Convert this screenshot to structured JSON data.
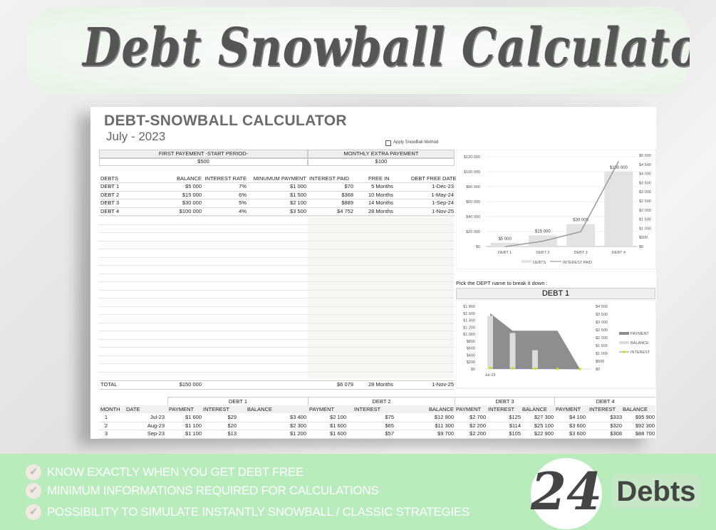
{
  "banner": {
    "title": "Debt Snowball Calculator"
  },
  "sheet": {
    "title": "DEBT-SNOWBALL CALCULATOR",
    "period": "July - 2023",
    "snowball_checkbox_label": "Apply SnowBall Method",
    "snowball_checked": false
  },
  "settings": {
    "first_payment_label": "FIRST PAYEMENT -START PERIOD-",
    "first_payment_value": "$500",
    "extra_payment_label": "MONTHLY EXTRA PAYEMENT",
    "extra_payment_value": "$100"
  },
  "debts": {
    "headers": [
      "DEBTS",
      "BALANCE",
      "INTEREST RATE",
      "MINUMUM PAYMENT",
      "INTEREST PAID",
      "FREE IN",
      "DEBT FREE DATE"
    ],
    "rows": [
      [
        "DEBT 1",
        "$5 000",
        "7%",
        "$1 000",
        "$70",
        "5 Months",
        "1-Dec-23"
      ],
      [
        "DEBT 2",
        "$15 000",
        "6%",
        "$1 500",
        "$368",
        "10 Months",
        "1-May-24"
      ],
      [
        "DEBT 3",
        "$30 000",
        "5%",
        "$2 100",
        "$889",
        "14 Months",
        "1-Sep-24"
      ],
      [
        "DEBT 4",
        "$100 000",
        "4%",
        "$3 500",
        "$4 752",
        "28 Months",
        "1-Nov-25"
      ]
    ],
    "total": [
      "TOTAL",
      "$150 000",
      "$6 079",
      "28 Months",
      "1-Nov-25"
    ]
  },
  "schedule": {
    "groups": [
      "DEBT 1",
      "DEBT 2",
      "DEBT 3",
      "DEBT 4"
    ],
    "headers": [
      "MONTH",
      "DATE",
      "PAYMENT",
      "INTEREST",
      "BALANCE",
      "PAYMENT",
      "INTEREST",
      "BALANCE",
      "PAYMENT",
      "INTEREST",
      "BALANCE",
      "PAYMENT",
      "INTEREST",
      "BALANCE"
    ],
    "rows": [
      [
        "1",
        "Jul-23",
        "$1 600",
        "$29",
        "$3 400",
        "$2 100",
        "$75",
        "$12 900",
        "$2 700",
        "$125",
        "$27 300",
        "$4 100",
        "$333",
        "$95 900"
      ],
      [
        "2",
        "Aug-23",
        "$1 100",
        "$20",
        "$2 300",
        "$1 600",
        "$65",
        "$11 300",
        "$2 200",
        "$114",
        "$25 100",
        "$3 600",
        "$320",
        "$92 300"
      ],
      [
        "3",
        "Sep-23",
        "$1 100",
        "$13",
        "$1 200",
        "$1 600",
        "$57",
        "$9 700",
        "$2 200",
        "$105",
        "$22 900",
        "$3 600",
        "$308",
        "$88 700"
      ]
    ]
  },
  "breakdown": {
    "prompt": "Pick the DEPT name to break it down :",
    "selected": "DEBT 1"
  },
  "chart_data": [
    {
      "type": "bar",
      "categories": [
        "DEBT 1",
        "DEBT 2",
        "DEBT 3",
        "DEBT 4"
      ],
      "series": [
        {
          "name": "DEBTS",
          "type": "bar",
          "axis": "left",
          "values": [
            5000,
            15000,
            30000,
            100000
          ],
          "labels": [
            "$5 000",
            "$15 000",
            "$30 000",
            "$100 000"
          ],
          "color": "#e3e3e3"
        },
        {
          "name": "INTEREST PAID",
          "type": "line",
          "axis": "right",
          "values": [
            70,
            368,
            889,
            4752
          ],
          "color": "#9a9a9a"
        }
      ],
      "ylim": [
        0,
        120000
      ],
      "yticks": [
        "$0",
        "$20 000",
        "$40 000",
        "$60 000",
        "$80 000",
        "$100 000",
        "$120 000"
      ],
      "y2lim": [
        0,
        5000
      ],
      "y2ticks": [
        "$0",
        "$500",
        "$1 000",
        "$1 500",
        "$2 000",
        "$2 500",
        "$3 000",
        "$3 500",
        "$4 000",
        "$4 500",
        "$5 000"
      ],
      "grid": true,
      "legend": "bottom"
    },
    {
      "type": "area",
      "x_labels": [
        "Jul-23",
        "",
        "",
        "",
        ""
      ],
      "series": [
        {
          "name": "PAYMENT",
          "type": "area",
          "axis": "left",
          "values": [
            1600,
            1100,
            1100,
            1100,
            0
          ],
          "color": "#8e8e8e"
        },
        {
          "name": "BALANCE",
          "type": "bar",
          "axis": "right",
          "values": [
            3400,
            2300,
            1200,
            0,
            0
          ],
          "color": "#dcdcdc"
        },
        {
          "name": "INTEREST",
          "type": "line",
          "axis": "left",
          "values": [
            29,
            20,
            13,
            5,
            0
          ],
          "color": "#c8e600"
        }
      ],
      "ylim": [
        0,
        1800
      ],
      "yticks": [
        "$0",
        "$200",
        "$400",
        "$600",
        "$800",
        "$1 000",
        "$1 200",
        "$1 400",
        "$1 600",
        "$1 800"
      ],
      "y2lim": [
        0,
        4000
      ],
      "y2ticks": [
        "$0",
        "$500",
        "$1 000",
        "$1 500",
        "$2 000",
        "$2 500",
        "$3 000",
        "$3 500",
        "$4 000"
      ],
      "legend": "right"
    }
  ],
  "features": [
    "KNOW EXACTLY WHEN YOU GET DEBT FREE",
    "MINIMUM INFORMATIONS REQUIRED FOR CALCULATIONS",
    "POSSIBILITY TO SIMULATE INSTANTLY SNOWBALL / CLASSIC STRATEGIES"
  ],
  "badge": {
    "count": "24",
    "label": "Debts"
  }
}
